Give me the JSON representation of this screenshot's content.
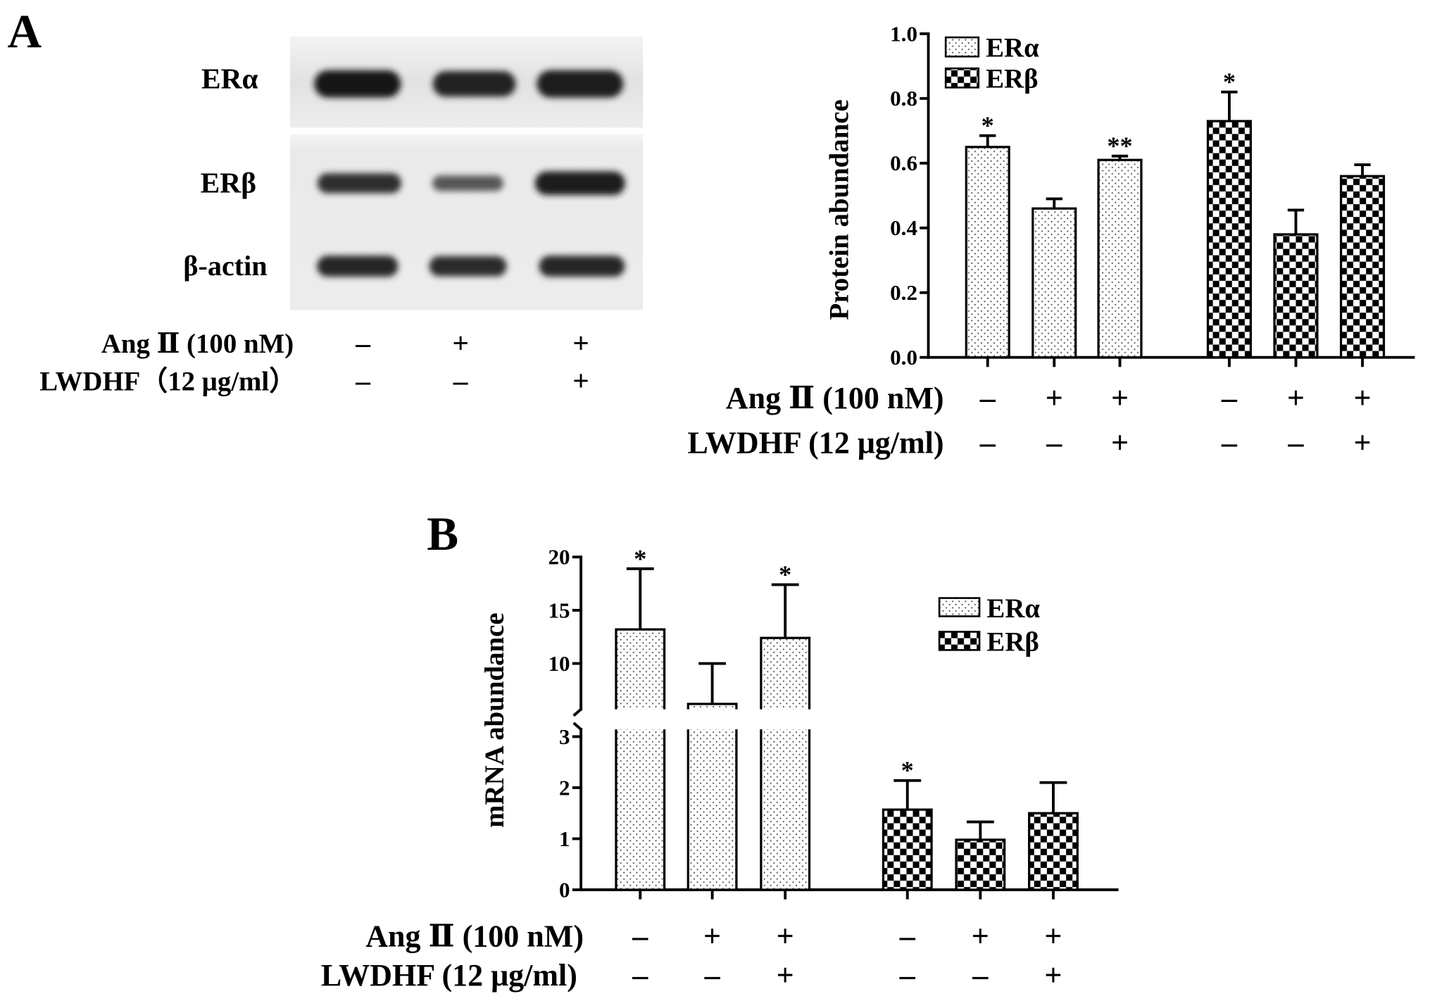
{
  "figure": {
    "panel_a_label": "A",
    "panel_b_label": "B"
  },
  "blot": {
    "rows": [
      {
        "label": "ERα",
        "intensity": [
          1.0,
          0.92,
          0.96
        ]
      },
      {
        "label": "ERβ",
        "intensity": [
          0.86,
          0.64,
          0.95
        ]
      },
      {
        "label": "β-actin",
        "intensity": [
          0.9,
          0.88,
          0.9
        ]
      }
    ],
    "conditions": [
      {
        "label": "Ang Ⅱ (100 nM)",
        "marks": [
          "–",
          "+",
          "+"
        ]
      },
      {
        "label": "LWDHF（12 μg/ml）",
        "marks": [
          "–",
          "–",
          "+"
        ]
      }
    ]
  },
  "chart_data": [
    {
      "type": "bar",
      "ylabel": "Protein abundance",
      "ylim": [
        0,
        1.0
      ],
      "yticks": [
        "0.0",
        "0.2",
        "0.4",
        "0.6",
        "0.8",
        "1.0"
      ],
      "legend_position": "top-left",
      "series": [
        {
          "name": "ERα",
          "values": [
            0.65,
            0.46,
            0.61
          ],
          "errors": [
            0.035,
            0.03,
            0.012
          ],
          "significance": [
            "*",
            "",
            "**"
          ]
        },
        {
          "name": "ERβ",
          "values": [
            0.73,
            0.38,
            0.56
          ],
          "errors": [
            0.09,
            0.075,
            0.035
          ],
          "significance": [
            "*",
            "",
            ""
          ]
        }
      ],
      "conditions": [
        {
          "label": "Ang Ⅱ (100 nM)",
          "marks": [
            "–",
            "+",
            "+",
            "–",
            "+",
            "+"
          ]
        },
        {
          "label": "LWDHF (12 μg/ml)",
          "marks": [
            "–",
            "–",
            "+",
            "–",
            "–",
            "+"
          ]
        }
      ]
    },
    {
      "type": "bar",
      "ylabel": "mRNA abundance",
      "ylim": [
        0,
        20
      ],
      "axis_break": [
        3,
        5.7
      ],
      "yticks_lower": [
        "0",
        "1",
        "2",
        "3"
      ],
      "yticks_upper": [
        "10",
        "15",
        "20"
      ],
      "legend_position": "top-right",
      "series": [
        {
          "name": "ERα",
          "values": [
            13.2,
            6.2,
            12.4
          ],
          "errors": [
            5.7,
            3.8,
            5.0
          ],
          "significance": [
            "*",
            "",
            "*"
          ]
        },
        {
          "name": "ERβ",
          "values": [
            1.57,
            0.98,
            1.5
          ],
          "errors": [
            0.57,
            0.35,
            0.6
          ],
          "significance": [
            "*",
            "",
            ""
          ]
        }
      ],
      "conditions": [
        {
          "label": "Ang Ⅱ (100 nM)",
          "marks": [
            "–",
            "+",
            "+",
            "–",
            "+",
            "+"
          ]
        },
        {
          "label": "LWDHF (12 μg/ml)",
          "marks": [
            "–",
            "–",
            "+",
            "–",
            "–",
            "+"
          ]
        }
      ]
    }
  ]
}
